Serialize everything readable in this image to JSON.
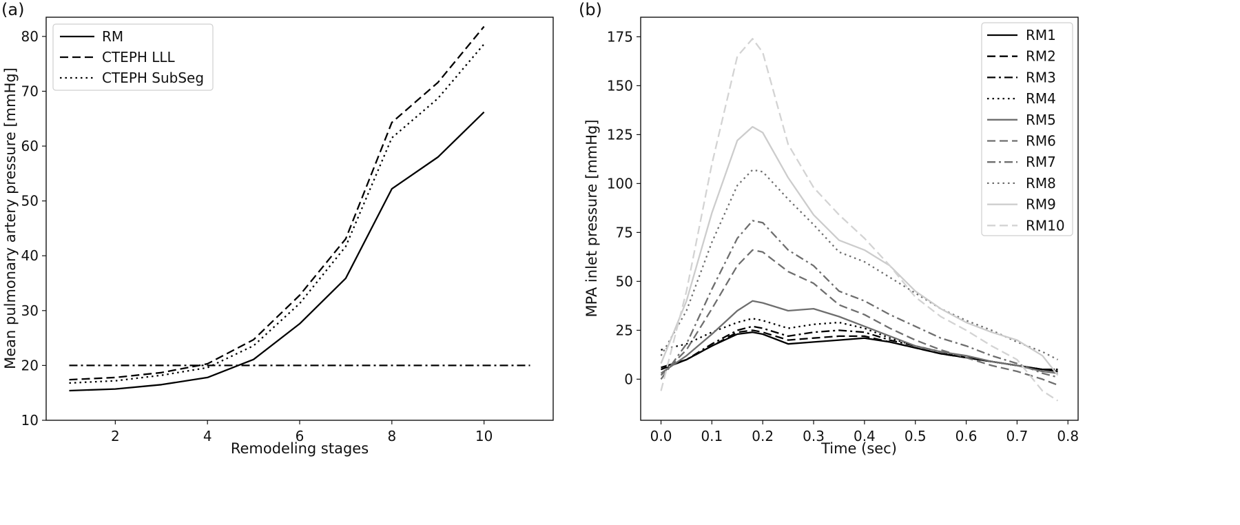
{
  "chart_data": [
    {
      "panel_label": "(a)",
      "type": "line",
      "xlabel": "Remodeling stages",
      "ylabel": "Mean pulmonary artery pressure [mmHg]",
      "xlim": [
        0.5,
        11.5
      ],
      "ylim": [
        10,
        83.5
      ],
      "xticks": [
        2,
        4,
        6,
        8,
        10
      ],
      "yticks": [
        10,
        20,
        30,
        40,
        50,
        60,
        70,
        80
      ],
      "legend_position": "upper-left",
      "series": [
        {
          "name": "RM",
          "color": "#000000",
          "dash": "solid",
          "x": [
            1,
            2,
            3,
            4,
            5,
            6,
            7,
            8,
            9,
            10
          ],
          "y": [
            15.4,
            15.7,
            16.5,
            17.8,
            21.1,
            27.6,
            35.9,
            52.2,
            58.0,
            66.2
          ]
        },
        {
          "name": "CTEPH LLL",
          "color": "#000000",
          "dash": "dashed",
          "x": [
            1,
            2,
            3,
            4,
            5,
            6,
            7,
            8,
            9,
            10
          ],
          "y": [
            17.4,
            17.8,
            18.7,
            20.3,
            24.7,
            32.8,
            43.1,
            64.3,
            71.6,
            81.8
          ]
        },
        {
          "name": "CTEPH SubSeg",
          "color": "#000000",
          "dash": "dotted",
          "x": [
            1,
            2,
            3,
            4,
            5,
            6,
            7,
            8,
            9,
            10
          ],
          "y": [
            16.8,
            17.2,
            18.2,
            19.6,
            23.6,
            31.3,
            41.7,
            61.5,
            68.7,
            78.6
          ]
        },
        {
          "color": "#000000",
          "dash": "dashdot",
          "x": [
            1,
            11
          ],
          "y": [
            20,
            20
          ]
        }
      ]
    },
    {
      "panel_label": "(b)",
      "type": "line",
      "xlabel": "Time (sec)",
      "ylabel": "MPA inlet pressure [mmHg]",
      "xlim": [
        -0.04,
        0.82
      ],
      "ylim": [
        -21,
        185
      ],
      "xticks": [
        "0.0",
        "0.1",
        "0.2",
        "0.3",
        "0.4",
        "0.5",
        "0.6",
        "0.7",
        "0.8"
      ],
      "yticks": [
        0,
        25,
        50,
        75,
        100,
        125,
        150,
        175
      ],
      "legend_position": "upper-right",
      "series": [
        {
          "name": "RM1",
          "color": "#000000",
          "dash": "solid",
          "x": [
            0,
            0.05,
            0.1,
            0.15,
            0.18,
            0.2,
            0.25,
            0.3,
            0.35,
            0.4,
            0.45,
            0.5,
            0.55,
            0.6,
            0.65,
            0.7,
            0.75,
            0.78
          ],
          "y": [
            6,
            10,
            17,
            23,
            24,
            23,
            18,
            19,
            20,
            21,
            19,
            16,
            13,
            11,
            9,
            7,
            5,
            4
          ]
        },
        {
          "name": "RM2",
          "color": "#000000",
          "dash": "dashed",
          "x": [
            0,
            0.05,
            0.1,
            0.15,
            0.18,
            0.2,
            0.25,
            0.3,
            0.35,
            0.4,
            0.45,
            0.5,
            0.55,
            0.6,
            0.65,
            0.7,
            0.75,
            0.78
          ],
          "y": [
            5,
            10,
            17,
            24,
            25,
            24,
            20,
            21,
            22,
            22,
            19,
            16,
            13,
            11,
            9,
            7,
            5,
            5
          ]
        },
        {
          "name": "RM3",
          "color": "#000000",
          "dash": "dashdot",
          "x": [
            0,
            0.05,
            0.1,
            0.15,
            0.18,
            0.2,
            0.25,
            0.3,
            0.35,
            0.4,
            0.45,
            0.5,
            0.55,
            0.6,
            0.65,
            0.7,
            0.75,
            0.78
          ],
          "y": [
            5,
            10,
            18,
            25,
            27,
            26,
            22,
            24,
            25,
            24,
            20,
            17,
            14,
            11,
            9,
            7,
            5,
            5
          ]
        },
        {
          "name": "RM4",
          "color": "#000000",
          "dash": "dotted",
          "x": [
            0,
            0.05,
            0.1,
            0.15,
            0.18,
            0.2,
            0.25,
            0.3,
            0.35,
            0.4,
            0.45,
            0.5,
            0.55,
            0.6,
            0.65,
            0.7,
            0.75,
            0.78
          ],
          "y": [
            15,
            18,
            24,
            29,
            31,
            30,
            26,
            28,
            29,
            26,
            21,
            17,
            14,
            11,
            9,
            7,
            5,
            5
          ]
        },
        {
          "name": "RM5",
          "color": "#6e6e6e",
          "dash": "solid",
          "x": [
            0,
            0.05,
            0.1,
            0.15,
            0.18,
            0.2,
            0.25,
            0.3,
            0.35,
            0.4,
            0.45,
            0.5,
            0.55,
            0.6,
            0.65,
            0.7,
            0.75,
            0.78
          ],
          "y": [
            3,
            12,
            23,
            35,
            40,
            39,
            35,
            36,
            32,
            27,
            22,
            17,
            14,
            12,
            9,
            7,
            4,
            3
          ]
        },
        {
          "name": "RM6",
          "color": "#6e6e6e",
          "dash": "dashed",
          "x": [
            0,
            0.05,
            0.1,
            0.15,
            0.18,
            0.2,
            0.25,
            0.3,
            0.35,
            0.4,
            0.45,
            0.5,
            0.55,
            0.6,
            0.65,
            0.7,
            0.75,
            0.78
          ],
          "y": [
            2,
            15,
            36,
            58,
            66,
            65,
            55,
            49,
            38,
            33,
            26,
            20,
            15,
            11,
            7,
            4,
            0,
            -3
          ]
        },
        {
          "name": "RM7",
          "color": "#6e6e6e",
          "dash": "dashdot",
          "x": [
            0,
            0.05,
            0.1,
            0.15,
            0.18,
            0.2,
            0.25,
            0.3,
            0.35,
            0.4,
            0.45,
            0.5,
            0.55,
            0.6,
            0.65,
            0.7,
            0.75,
            0.78
          ],
          "y": [
            0,
            18,
            46,
            72,
            81,
            80,
            66,
            58,
            45,
            40,
            33,
            27,
            21,
            17,
            12,
            8,
            3,
            1
          ]
        },
        {
          "name": "RM8",
          "color": "#6e6e6e",
          "dash": "dotted",
          "x": [
            0,
            0.05,
            0.1,
            0.15,
            0.18,
            0.2,
            0.25,
            0.3,
            0.35,
            0.4,
            0.45,
            0.5,
            0.55,
            0.6,
            0.65,
            0.7,
            0.75,
            0.78
          ],
          "y": [
            12,
            35,
            70,
            99,
            107,
            106,
            92,
            79,
            65,
            60,
            52,
            44,
            36,
            30,
            25,
            19,
            14,
            10
          ]
        },
        {
          "name": "RM9",
          "color": "#cccccc",
          "dash": "solid",
          "x": [
            0,
            0.05,
            0.1,
            0.15,
            0.18,
            0.2,
            0.25,
            0.3,
            0.35,
            0.4,
            0.45,
            0.5,
            0.55,
            0.6,
            0.65,
            0.7,
            0.75,
            0.78
          ],
          "y": [
            8,
            40,
            85,
            122,
            129,
            126,
            103,
            84,
            71,
            66,
            58,
            45,
            36,
            29,
            24,
            20,
            12,
            2
          ]
        },
        {
          "name": "RM10",
          "color": "#d3d3d3",
          "dash": "dashed",
          "x": [
            0,
            0.05,
            0.1,
            0.15,
            0.18,
            0.2,
            0.25,
            0.3,
            0.35,
            0.4,
            0.45,
            0.5,
            0.55,
            0.6,
            0.65,
            0.7,
            0.75,
            0.78
          ],
          "y": [
            -6,
            45,
            110,
            165,
            174,
            167,
            120,
            98,
            84,
            72,
            58,
            42,
            32,
            25,
            17,
            10,
            -6,
            -11
          ]
        }
      ]
    }
  ]
}
